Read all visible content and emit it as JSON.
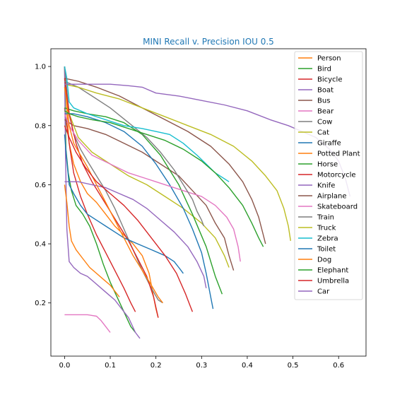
{
  "chart_data": {
    "type": "line",
    "title": "MINI Recall v. Precision IOU 0.5",
    "xlabel": "",
    "ylabel": "",
    "xlim": [
      -0.03,
      0.66
    ],
    "ylim": [
      0.02,
      1.06
    ],
    "xticks": [
      0.0,
      0.1,
      0.2,
      0.3,
      0.4,
      0.5,
      0.6
    ],
    "xtick_labels": [
      "0.0",
      "0.1",
      "0.2",
      "0.3",
      "0.4",
      "0.5",
      "0.6"
    ],
    "yticks": [
      0.2,
      0.4,
      0.6,
      0.8,
      1.0
    ],
    "ytick_labels": [
      "0.2",
      "0.4",
      "0.6",
      "0.8",
      "1.0"
    ],
    "grid": false,
    "legend_position": "upper-right",
    "series": [
      {
        "name": "Person",
        "color": "#ff7f0e",
        "x": [
          0.0,
          0.005,
          0.01,
          0.02,
          0.035,
          0.05,
          0.07,
          0.09,
          0.11,
          0.13,
          0.15,
          0.17,
          0.185,
          0.195,
          0.2,
          0.205
        ],
        "y": [
          1.0,
          0.85,
          0.74,
          0.67,
          0.61,
          0.57,
          0.54,
          0.5,
          0.46,
          0.43,
          0.4,
          0.36,
          0.3,
          0.22,
          0.18,
          0.15
        ]
      },
      {
        "name": "Bird",
        "color": "#2ca02c",
        "x": [
          0.0,
          0.003,
          0.008,
          0.015,
          0.025,
          0.04,
          0.055,
          0.07,
          0.085,
          0.1,
          0.115,
          0.13,
          0.145,
          0.155
        ],
        "y": [
          1.0,
          0.72,
          0.64,
          0.58,
          0.53,
          0.5,
          0.46,
          0.4,
          0.33,
          0.27,
          0.22,
          0.17,
          0.12,
          0.1
        ]
      },
      {
        "name": "Bicycle",
        "color": "#d62728",
        "x": [
          0.0,
          0.005,
          0.012,
          0.02,
          0.035,
          0.05,
          0.07,
          0.09,
          0.11,
          0.13,
          0.145,
          0.155
        ],
        "y": [
          0.86,
          0.8,
          0.72,
          0.64,
          0.56,
          0.5,
          0.43,
          0.37,
          0.31,
          0.25,
          0.2,
          0.17
        ]
      },
      {
        "name": "Boat",
        "color": "#9467bd",
        "x": [
          0.0,
          0.002,
          0.005,
          0.01,
          0.02,
          0.035,
          0.05,
          0.065,
          0.08,
          0.095,
          0.11,
          0.125,
          0.14,
          0.155,
          0.165
        ],
        "y": [
          1.0,
          0.7,
          0.45,
          0.34,
          0.32,
          0.3,
          0.29,
          0.27,
          0.25,
          0.23,
          0.21,
          0.18,
          0.15,
          0.1,
          0.08
        ]
      },
      {
        "name": "Bus",
        "color": "#8c564b",
        "x": [
          0.0,
          0.02,
          0.05,
          0.09,
          0.13,
          0.17,
          0.21,
          0.25,
          0.28,
          0.31,
          0.33,
          0.35,
          0.36,
          0.37
        ],
        "y": [
          0.82,
          0.8,
          0.79,
          0.77,
          0.74,
          0.71,
          0.67,
          0.63,
          0.58,
          0.53,
          0.47,
          0.42,
          0.36,
          0.31
        ]
      },
      {
        "name": "Bear",
        "color": "#e377c2",
        "x": [
          0.0,
          0.01,
          0.03,
          0.05,
          0.07,
          0.08,
          0.09,
          0.1
        ],
        "y": [
          0.16,
          0.16,
          0.16,
          0.16,
          0.155,
          0.14,
          0.12,
          0.1
        ]
      },
      {
        "name": "Cow",
        "color": "#7f7f7f",
        "x": [
          0.0,
          0.005,
          0.01,
          0.02,
          0.035,
          0.05,
          0.07,
          0.09,
          0.11,
          0.13,
          0.15,
          0.17,
          0.19,
          0.205,
          0.215
        ],
        "y": [
          1.0,
          0.92,
          0.84,
          0.77,
          0.72,
          0.68,
          0.63,
          0.58,
          0.52,
          0.45,
          0.38,
          0.31,
          0.25,
          0.21,
          0.2
        ]
      },
      {
        "name": "Cat",
        "color": "#bcbd22",
        "x": [
          0.0,
          0.01,
          0.03,
          0.06,
          0.1,
          0.14,
          0.18,
          0.22,
          0.26,
          0.3,
          0.33,
          0.35,
          0.36
        ],
        "y": [
          0.93,
          0.84,
          0.76,
          0.71,
          0.67,
          0.63,
          0.6,
          0.56,
          0.52,
          0.47,
          0.42,
          0.36,
          0.32
        ]
      },
      {
        "name": "Giraffe",
        "color": "#1f77b4",
        "x": [
          0.0,
          0.02,
          0.05,
          0.09,
          0.13,
          0.17,
          0.2,
          0.23,
          0.26,
          0.28,
          0.3,
          0.31,
          0.32,
          0.325
        ],
        "y": [
          0.84,
          0.84,
          0.83,
          0.81,
          0.78,
          0.73,
          0.67,
          0.6,
          0.52,
          0.45,
          0.37,
          0.3,
          0.22,
          0.18
        ]
      },
      {
        "name": "Potted Plant",
        "color": "#ff7f0e",
        "x": [
          0.0,
          0.005,
          0.01,
          0.015,
          0.025,
          0.04,
          0.055,
          0.07,
          0.085,
          0.1,
          0.11,
          0.12
        ],
        "y": [
          0.6,
          0.54,
          0.46,
          0.41,
          0.38,
          0.35,
          0.32,
          0.3,
          0.28,
          0.26,
          0.24,
          0.22
        ]
      },
      {
        "name": "Horse",
        "color": "#2ca02c",
        "x": [
          0.0,
          0.02,
          0.05,
          0.09,
          0.13,
          0.17,
          0.21,
          0.25,
          0.28,
          0.31,
          0.33,
          0.345
        ],
        "y": [
          0.86,
          0.85,
          0.84,
          0.83,
          0.81,
          0.77,
          0.7,
          0.6,
          0.5,
          0.39,
          0.29,
          0.23
        ]
      },
      {
        "name": "Motorcycle",
        "color": "#d62728",
        "x": [
          0.0,
          0.01,
          0.025,
          0.04,
          0.06,
          0.08,
          0.1,
          0.12,
          0.14,
          0.16,
          0.18,
          0.195,
          0.205
        ],
        "y": [
          0.96,
          0.84,
          0.74,
          0.67,
          0.61,
          0.56,
          0.51,
          0.46,
          0.41,
          0.35,
          0.29,
          0.22,
          0.15
        ]
      },
      {
        "name": "Knife",
        "color": "#9467bd",
        "x": [
          0.0,
          0.03,
          0.06,
          0.09,
          0.12,
          0.15,
          0.18,
          0.21,
          0.24,
          0.27,
          0.29,
          0.305,
          0.31
        ],
        "y": [
          0.61,
          0.61,
          0.6,
          0.59,
          0.57,
          0.55,
          0.52,
          0.48,
          0.44,
          0.39,
          0.34,
          0.29,
          0.25
        ]
      },
      {
        "name": "Airplane",
        "color": "#8c564b",
        "x": [
          0.0,
          0.03,
          0.07,
          0.12,
          0.17,
          0.22,
          0.27,
          0.32,
          0.36,
          0.39,
          0.41,
          0.425,
          0.435,
          0.44
        ],
        "y": [
          0.96,
          0.95,
          0.93,
          0.9,
          0.86,
          0.82,
          0.78,
          0.73,
          0.67,
          0.61,
          0.55,
          0.49,
          0.43,
          0.4
        ]
      },
      {
        "name": "Skateboard",
        "color": "#e377c2",
        "x": [
          0.0,
          0.01,
          0.03,
          0.06,
          0.1,
          0.14,
          0.18,
          0.22,
          0.26,
          0.3,
          0.33,
          0.355,
          0.37,
          0.38,
          0.385
        ],
        "y": [
          0.84,
          0.8,
          0.75,
          0.7,
          0.67,
          0.64,
          0.62,
          0.6,
          0.58,
          0.56,
          0.53,
          0.49,
          0.45,
          0.39,
          0.34
        ]
      },
      {
        "name": "Train",
        "color": "#7f7f7f",
        "x": [
          0.0,
          0.03,
          0.06,
          0.1,
          0.14,
          0.18,
          0.21,
          0.24,
          0.26,
          0.28,
          0.29,
          0.3,
          0.305
        ],
        "y": [
          0.95,
          0.93,
          0.9,
          0.86,
          0.81,
          0.76,
          0.71,
          0.65,
          0.6,
          0.55,
          0.51,
          0.48,
          0.46
        ]
      },
      {
        "name": "Truck",
        "color": "#bcbd22",
        "x": [
          0.0,
          0.03,
          0.07,
          0.12,
          0.17,
          0.22,
          0.27,
          0.32,
          0.37,
          0.41,
          0.44,
          0.465,
          0.48,
          0.49,
          0.495
        ],
        "y": [
          0.94,
          0.93,
          0.91,
          0.89,
          0.86,
          0.83,
          0.8,
          0.77,
          0.73,
          0.68,
          0.63,
          0.58,
          0.52,
          0.46,
          0.41
        ]
      },
      {
        "name": "Zebra",
        "color": "#17becf",
        "x": [
          0.0,
          0.005,
          0.01,
          0.02,
          0.05,
          0.09,
          0.13,
          0.17,
          0.2,
          0.23,
          0.26,
          0.29,
          0.31,
          0.33,
          0.36
        ],
        "y": [
          1.0,
          0.96,
          0.88,
          0.86,
          0.84,
          0.82,
          0.8,
          0.79,
          0.78,
          0.77,
          0.74,
          0.7,
          0.67,
          0.64,
          0.61
        ]
      },
      {
        "name": "Toilet",
        "color": "#1f77b4",
        "x": [
          0.0,
          0.005,
          0.01,
          0.02,
          0.035,
          0.05,
          0.07,
          0.09,
          0.11,
          0.13,
          0.16,
          0.19,
          0.22,
          0.24,
          0.25,
          0.26
        ],
        "y": [
          0.77,
          0.68,
          0.6,
          0.57,
          0.53,
          0.5,
          0.48,
          0.46,
          0.44,
          0.42,
          0.4,
          0.38,
          0.36,
          0.34,
          0.32,
          0.3
        ]
      },
      {
        "name": "Dog",
        "color": "#ff7f0e",
        "x": [
          0.0,
          0.005,
          0.01,
          0.02,
          0.035,
          0.05,
          0.07,
          0.09,
          0.11,
          0.13,
          0.15,
          0.17,
          0.19,
          0.205,
          0.215
        ],
        "y": [
          0.93,
          0.88,
          0.8,
          0.74,
          0.7,
          0.66,
          0.6,
          0.54,
          0.48,
          0.42,
          0.36,
          0.31,
          0.26,
          0.22,
          0.2
        ]
      },
      {
        "name": "Elephant",
        "color": "#2ca02c",
        "x": [
          0.0,
          0.01,
          0.03,
          0.06,
          0.1,
          0.14,
          0.18,
          0.22,
          0.26,
          0.3,
          0.33,
          0.36,
          0.39,
          0.41,
          0.425,
          0.435
        ],
        "y": [
          0.85,
          0.84,
          0.83,
          0.82,
          0.81,
          0.79,
          0.77,
          0.75,
          0.72,
          0.68,
          0.64,
          0.59,
          0.53,
          0.47,
          0.42,
          0.39
        ]
      },
      {
        "name": "Umbrella",
        "color": "#d62728",
        "x": [
          0.0,
          0.01,
          0.025,
          0.045,
          0.07,
          0.1,
          0.13,
          0.16,
          0.19,
          0.22,
          0.245,
          0.265,
          0.275,
          0.28
        ],
        "y": [
          0.8,
          0.76,
          0.71,
          0.66,
          0.61,
          0.57,
          0.53,
          0.48,
          0.42,
          0.36,
          0.3,
          0.23,
          0.19,
          0.17
        ]
      },
      {
        "name": "Car",
        "color": "#9467bd",
        "x": [
          0.0,
          0.02,
          0.06,
          0.1,
          0.14,
          0.17,
          0.2,
          0.25,
          0.3,
          0.35,
          0.4,
          0.45,
          0.49,
          0.52,
          0.55,
          0.58,
          0.6,
          0.615,
          0.625
        ],
        "y": [
          0.94,
          0.94,
          0.94,
          0.94,
          0.935,
          0.93,
          0.91,
          0.9,
          0.885,
          0.87,
          0.85,
          0.82,
          0.8,
          0.78,
          0.76,
          0.72,
          0.68,
          0.62,
          0.56
        ]
      }
    ]
  }
}
